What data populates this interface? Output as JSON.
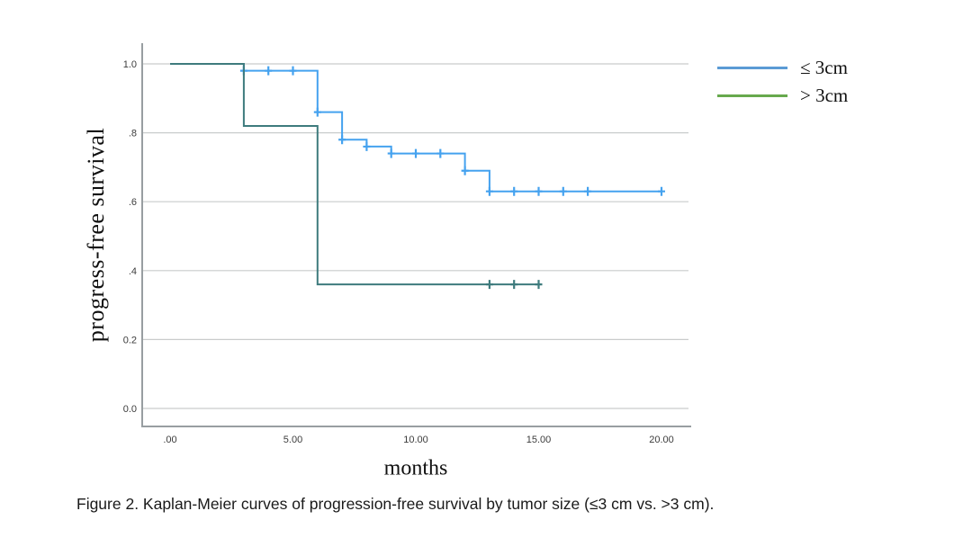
{
  "figure": {
    "caption": "Figure 2. Kaplan-Meier curves of progression-free survival by tumor size (≤3 cm vs. >3 cm)."
  },
  "chart_data": {
    "type": "line",
    "subtype": "kaplan-meier-step",
    "title": "",
    "xlabel": "months",
    "ylabel": "progress-free survival",
    "xlim": [
      -1,
      21
    ],
    "ylim": [
      -0.05,
      1.08
    ],
    "grid": "horizontal",
    "legend_position": "outside-right-top",
    "x_ticks": [
      {
        "value": 0,
        "label": ".00"
      },
      {
        "value": 5,
        "label": "5.00"
      },
      {
        "value": 10,
        "label": "10.00"
      },
      {
        "value": 15,
        "label": "15.00"
      },
      {
        "value": 20,
        "label": "20.00"
      }
    ],
    "y_ticks": [
      {
        "value": 1.0,
        "label": "1.0"
      },
      {
        "value": 0.8,
        "label": ".8"
      },
      {
        "value": 0.6,
        "label": ".6"
      },
      {
        "value": 0.4,
        "label": ".4"
      },
      {
        "value": 0.2,
        "label": "0.2"
      },
      {
        "value": 0.0,
        "label": "0.0"
      }
    ],
    "series": [
      {
        "id": "le-3cm",
        "name": "≤ 3cm",
        "color": "#45a2ef",
        "legend_color": "#5b9bd5",
        "step_points": [
          [
            0,
            1.0
          ],
          [
            3,
            1.0
          ],
          [
            3,
            0.98
          ],
          [
            6,
            0.98
          ],
          [
            6,
            0.86
          ],
          [
            7,
            0.86
          ],
          [
            7,
            0.78
          ],
          [
            8,
            0.78
          ],
          [
            8,
            0.76
          ],
          [
            9,
            0.76
          ],
          [
            9,
            0.74
          ],
          [
            12,
            0.74
          ],
          [
            12,
            0.69
          ],
          [
            13,
            0.69
          ],
          [
            13,
            0.63
          ],
          [
            20,
            0.63
          ]
        ],
        "censor_marks": [
          [
            3,
            0.98
          ],
          [
            4,
            0.98
          ],
          [
            5,
            0.98
          ],
          [
            6,
            0.86
          ],
          [
            7,
            0.78
          ],
          [
            8,
            0.76
          ],
          [
            9,
            0.74
          ],
          [
            10,
            0.74
          ],
          [
            11,
            0.74
          ],
          [
            12,
            0.69
          ],
          [
            13,
            0.63
          ],
          [
            14,
            0.63
          ],
          [
            15,
            0.63
          ],
          [
            16,
            0.63
          ],
          [
            17,
            0.63
          ],
          [
            20,
            0.63
          ]
        ]
      },
      {
        "id": "gt-3cm",
        "name": "> 3cm",
        "color": "#3e7b7d",
        "legend_color": "#67a94d",
        "step_points": [
          [
            0,
            1.0
          ],
          [
            3,
            1.0
          ],
          [
            3,
            0.82
          ],
          [
            6,
            0.82
          ],
          [
            6,
            0.36
          ],
          [
            15,
            0.36
          ]
        ],
        "censor_marks": [
          [
            13,
            0.36
          ],
          [
            14,
            0.36
          ],
          [
            15,
            0.36
          ]
        ]
      }
    ]
  }
}
